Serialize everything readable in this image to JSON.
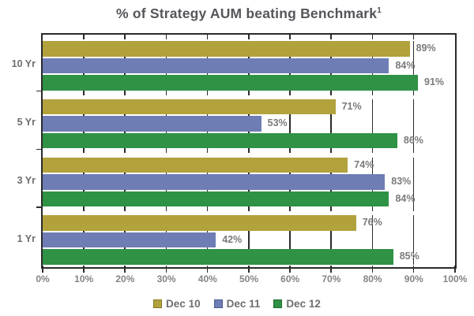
{
  "chart_data": {
    "type": "bar",
    "orientation": "horizontal",
    "title": "% of Strategy AUM beating Benchmark",
    "title_superscript": "1",
    "categories": [
      "10 Yr",
      "5 Yr",
      "3 Yr",
      "1 Yr"
    ],
    "series": [
      {
        "name": "Dec 10",
        "color": "#B1A23C",
        "border_color": "#857A23",
        "values": [
          89,
          71,
          74,
          76
        ]
      },
      {
        "name": "Dec 11",
        "color": "#6E7DB4",
        "border_color": "#4A5A91",
        "values": [
          84,
          53,
          83,
          42
        ]
      },
      {
        "name": "Dec 12",
        "color": "#2F9245",
        "border_color": "#1F6B30",
        "values": [
          91,
          86,
          84,
          85
        ]
      }
    ],
    "value_suffix": "%",
    "x_axis": {
      "min": 0,
      "max": 100,
      "tick_step": 10,
      "tick_labels": [
        "0%",
        "10%",
        "20%",
        "30%",
        "40%",
        "50%",
        "60%",
        "70%",
        "80%",
        "90%",
        "100%"
      ]
    },
    "legend_position": "bottom",
    "grid": true
  },
  "colors": {
    "grid": "#2B2B2B",
    "title_text": "#54565A",
    "value_label_text": "#797A7D",
    "axis_label_text": "#828487",
    "category_label_text": "#6D6E71",
    "background": "#FFFFFF"
  }
}
